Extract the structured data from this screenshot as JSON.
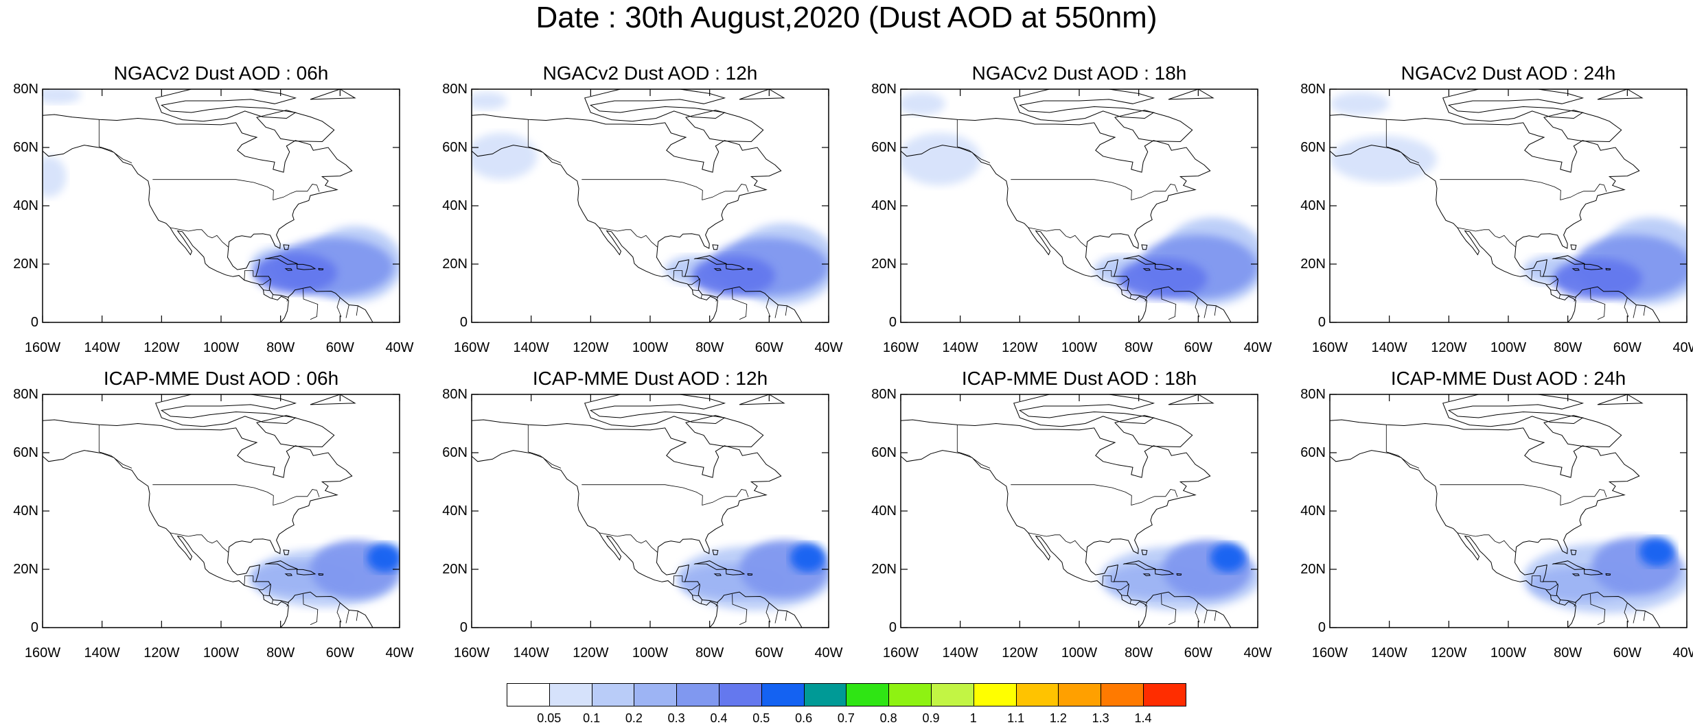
{
  "title": "Date : 30th August,2020 (Dust AOD at 550nm)",
  "colorbar": {
    "labels": [
      "0.05",
      "0.1",
      "0.2",
      "0.3",
      "0.4",
      "0.5",
      "0.6",
      "0.7",
      "0.8",
      "0.9",
      "1",
      "1.1",
      "1.2",
      "1.3",
      "1.4"
    ],
    "colors": [
      "#ffffff",
      "#d6e2fb",
      "#b9ccf8",
      "#9db4f4",
      "#8098f0",
      "#6478ee",
      "#1462f2",
      "#009a96",
      "#2fe514",
      "#8ef212",
      "#c2f544",
      "#ffff00",
      "#ffc300",
      "#ffa000",
      "#ff7a00",
      "#ff2d00"
    ]
  },
  "axes": {
    "lat_labels": [
      "80N",
      "60N",
      "40N",
      "20N",
      "0"
    ],
    "lon_labels": [
      "160W",
      "140W",
      "120W",
      "100W",
      "80W",
      "60W",
      "40W"
    ],
    "lat_range": [
      0,
      80
    ],
    "lon_range": [
      -160,
      -40
    ]
  },
  "panels": [
    {
      "title": "NGACv2 Dust AOD : 06h",
      "model": "NGACv2",
      "hour": 6,
      "plumes": [
        {
          "lon": -62,
          "lat": 19,
          "rlon": 20,
          "rlat": 10,
          "level": 4
        },
        {
          "lon": -75,
          "lat": 17,
          "rlon": 14,
          "rlat": 7,
          "level": 5
        },
        {
          "lon": -55,
          "lat": 20,
          "rlon": 16,
          "rlat": 13,
          "level": 2
        },
        {
          "lon": -80,
          "lat": 20,
          "rlon": 10,
          "rlat": 6,
          "level": 2
        },
        {
          "lon": -155,
          "lat": 78,
          "rlon": 8,
          "rlat": 3,
          "level": 1
        },
        {
          "lon": -158,
          "lat": 50,
          "rlon": 6,
          "rlat": 7,
          "level": 1
        }
      ]
    },
    {
      "title": "NGACv2 Dust AOD : 12h",
      "model": "NGACv2",
      "hour": 12,
      "plumes": [
        {
          "lon": -60,
          "lat": 19,
          "rlon": 20,
          "rlat": 10,
          "level": 4
        },
        {
          "lon": -72,
          "lat": 16,
          "rlon": 14,
          "rlat": 7,
          "level": 5
        },
        {
          "lon": -55,
          "lat": 20,
          "rlon": 18,
          "rlat": 14,
          "level": 2
        },
        {
          "lon": -85,
          "lat": 18,
          "rlon": 10,
          "rlat": 5,
          "level": 2
        },
        {
          "lon": -155,
          "lat": 76,
          "rlon": 7,
          "rlat": 3,
          "level": 1
        },
        {
          "lon": -150,
          "lat": 57,
          "rlon": 12,
          "rlat": 8,
          "level": 1
        }
      ]
    },
    {
      "title": "NGACv2 Dust AOD : 18h",
      "model": "NGACv2",
      "hour": 18,
      "plumes": [
        {
          "lon": -60,
          "lat": 19,
          "rlon": 20,
          "rlat": 11,
          "level": 4
        },
        {
          "lon": -72,
          "lat": 15,
          "rlon": 15,
          "rlat": 7,
          "level": 5
        },
        {
          "lon": -55,
          "lat": 21,
          "rlon": 18,
          "rlat": 15,
          "level": 2
        },
        {
          "lon": -85,
          "lat": 18,
          "rlon": 10,
          "rlat": 5,
          "level": 2
        },
        {
          "lon": -153,
          "lat": 75,
          "rlon": 8,
          "rlat": 4,
          "level": 1
        },
        {
          "lon": -147,
          "lat": 56,
          "rlon": 14,
          "rlat": 9,
          "level": 1
        }
      ]
    },
    {
      "title": "NGACv2 Dust AOD : 24h",
      "model": "NGACv2",
      "hour": 24,
      "plumes": [
        {
          "lon": -58,
          "lat": 19,
          "rlon": 20,
          "rlat": 11,
          "level": 4
        },
        {
          "lon": -70,
          "lat": 15,
          "rlon": 15,
          "rlat": 7,
          "level": 5
        },
        {
          "lon": -52,
          "lat": 21,
          "rlon": 18,
          "rlat": 15,
          "level": 2
        },
        {
          "lon": -85,
          "lat": 18,
          "rlon": 10,
          "rlat": 5,
          "level": 2
        },
        {
          "lon": -150,
          "lat": 75,
          "rlon": 10,
          "rlat": 4,
          "level": 1
        },
        {
          "lon": -142,
          "lat": 56,
          "rlon": 18,
          "rlat": 8,
          "level": 1
        }
      ]
    },
    {
      "title": "ICAP-MME Dust AOD : 06h",
      "model": "ICAP-MME",
      "hour": 6,
      "plumes": [
        {
          "lon": -45,
          "lat": 24,
          "rlon": 6,
          "rlat": 5,
          "level": 6
        },
        {
          "lon": -55,
          "lat": 20,
          "rlon": 15,
          "rlat": 10,
          "level": 4
        },
        {
          "lon": -72,
          "lat": 17,
          "rlon": 18,
          "rlat": 6,
          "level": 3
        },
        {
          "lon": -65,
          "lat": 17,
          "rlon": 25,
          "rlat": 10,
          "level": 2
        }
      ]
    },
    {
      "title": "ICAP-MME Dust AOD : 12h",
      "model": "ICAP-MME",
      "hour": 12,
      "plumes": [
        {
          "lon": -47,
          "lat": 24,
          "rlon": 6,
          "rlat": 5,
          "level": 6
        },
        {
          "lon": -55,
          "lat": 20,
          "rlon": 15,
          "rlat": 10,
          "level": 4
        },
        {
          "lon": -72,
          "lat": 16,
          "rlon": 18,
          "rlat": 6,
          "level": 3
        },
        {
          "lon": -65,
          "lat": 17,
          "rlon": 26,
          "rlat": 11,
          "level": 2
        }
      ]
    },
    {
      "title": "ICAP-MME Dust AOD : 18h",
      "model": "ICAP-MME",
      "hour": 18,
      "plumes": [
        {
          "lon": -50,
          "lat": 24,
          "rlon": 6,
          "rlat": 5,
          "level": 6
        },
        {
          "lon": -57,
          "lat": 20,
          "rlon": 15,
          "rlat": 10,
          "level": 4
        },
        {
          "lon": -73,
          "lat": 16,
          "rlon": 18,
          "rlat": 6,
          "level": 3
        },
        {
          "lon": -66,
          "lat": 17,
          "rlon": 27,
          "rlat": 11,
          "level": 2
        }
      ]
    },
    {
      "title": "ICAP-MME Dust AOD : 24h",
      "model": "ICAP-MME",
      "hour": 24,
      "plumes": [
        {
          "lon": -50,
          "lat": 26,
          "rlon": 6,
          "rlat": 5,
          "level": 6
        },
        {
          "lon": -57,
          "lat": 21,
          "rlon": 15,
          "rlat": 10,
          "level": 4
        },
        {
          "lon": -75,
          "lat": 15,
          "rlon": 18,
          "rlat": 6,
          "level": 3
        },
        {
          "lon": -67,
          "lat": 17,
          "rlon": 28,
          "rlat": 12,
          "level": 2
        }
      ]
    }
  ]
}
